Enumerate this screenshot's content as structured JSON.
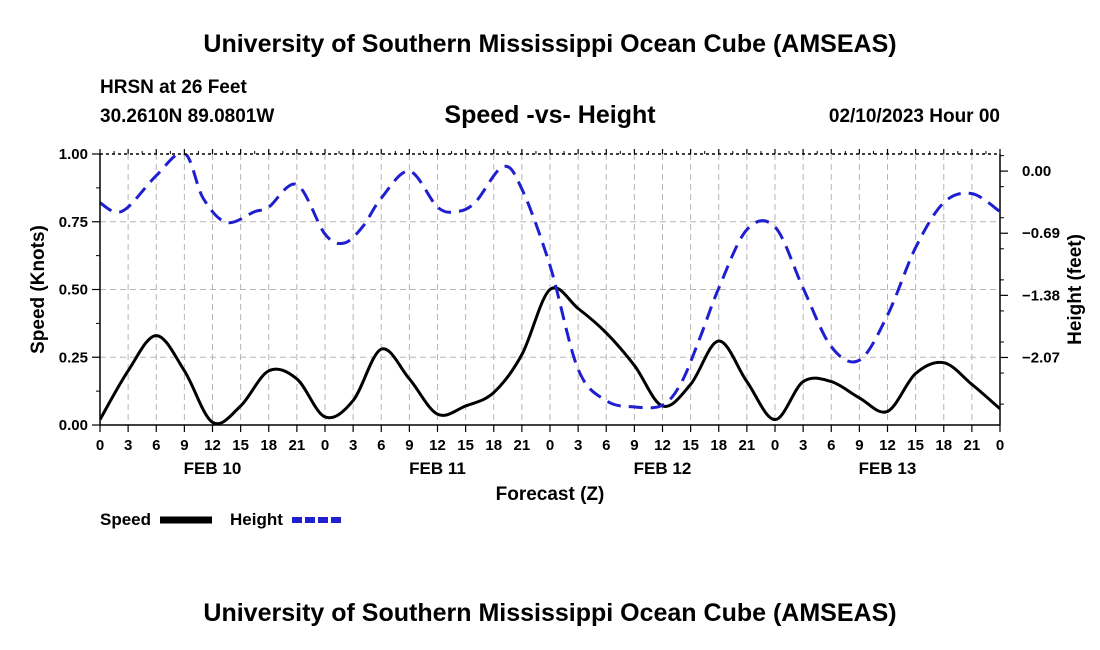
{
  "header": {
    "title": "University of Southern Mississippi Ocean Cube (AMSEAS)",
    "station": "HRSN at 26 Feet",
    "coords": "30.2610N  89.0801W",
    "chart_title": "Speed -vs- Height",
    "datetime": "02/10/2023 Hour 00"
  },
  "footer": {
    "title": "University of Southern Mississippi Ocean Cube (AMSEAS)"
  },
  "chart_data": {
    "type": "line",
    "title": "Speed -vs- Height",
    "xlabel": "Forecast (Z)",
    "ylabel": "Speed (Knots)",
    "y2label": "Height (feet)",
    "x_unit": "hours from 02/10/2023 00Z",
    "xlim": [
      0,
      96
    ],
    "ylim": [
      0,
      1
    ],
    "y2lim": [
      -2.82,
      0.19
    ],
    "y_ticks": [
      0,
      0.25,
      0.5,
      0.75,
      1
    ],
    "y_tick_labels": [
      "0.00",
      "0.25",
      "0.50",
      "0.75",
      "1.00"
    ],
    "y2_ticks": [
      0,
      -0.69,
      -1.38,
      -2.07
    ],
    "y2_tick_labels": [
      "0.00",
      "−0.69",
      "−1.38",
      "−2.07"
    ],
    "x_tick_labels": [
      "0",
      "3",
      "6",
      "9",
      "12",
      "15",
      "18",
      "21",
      "0",
      "3",
      "6",
      "9",
      "12",
      "15",
      "18",
      "21",
      "0",
      "3",
      "6",
      "9",
      "12",
      "15",
      "18",
      "21",
      "0",
      "3",
      "6",
      "9",
      "12",
      "15",
      "18",
      "21",
      "0"
    ],
    "day_labels": [
      {
        "hour": 12,
        "label": "FEB 10"
      },
      {
        "hour": 36,
        "label": "FEB 11"
      },
      {
        "hour": 60,
        "label": "FEB 12"
      },
      {
        "hour": 84,
        "label": "FEB 13"
      }
    ],
    "legend": [
      {
        "name": "Speed",
        "color": "#000000",
        "style": "solid"
      },
      {
        "name": "Height",
        "color": "#1f1fd0",
        "style": "dashed"
      }
    ],
    "series": [
      {
        "name": "Speed",
        "axis": "left",
        "color": "#000000",
        "x": [
          0,
          3,
          6,
          9,
          12,
          15,
          18,
          21,
          24,
          27,
          30,
          33,
          36,
          39,
          42,
          45,
          48,
          51,
          54,
          57,
          60,
          63,
          66,
          69,
          72,
          75,
          78,
          81,
          84,
          87,
          90,
          93,
          96
        ],
        "values": [
          0.02,
          0.2,
          0.33,
          0.2,
          0.01,
          0.07,
          0.2,
          0.17,
          0.03,
          0.09,
          0.28,
          0.17,
          0.04,
          0.07,
          0.12,
          0.26,
          0.5,
          0.43,
          0.34,
          0.22,
          0.07,
          0.15,
          0.31,
          0.16,
          0.02,
          0.16,
          0.16,
          0.1,
          0.05,
          0.19,
          0.23,
          0.15,
          0.06
        ]
      },
      {
        "name": "Height",
        "axis": "right",
        "color": "#1f1fd0",
        "x": [
          0,
          1.5,
          3,
          6,
          9,
          11,
          13.5,
          16.5,
          18,
          21,
          24,
          26,
          28,
          30,
          33,
          36,
          38,
          40,
          43,
          45,
          48,
          51,
          54,
          57,
          60,
          62,
          64,
          66,
          69,
          72,
          75,
          78,
          81,
          84,
          87,
          90,
          93,
          96
        ],
        "values": [
          -0.35,
          -0.45,
          -0.4,
          -0.05,
          0.2,
          -0.3,
          -0.57,
          -0.45,
          -0.4,
          -0.15,
          -0.7,
          -0.8,
          -0.62,
          -0.3,
          0.0,
          -0.4,
          -0.45,
          -0.35,
          0.05,
          -0.2,
          -1.05,
          -2.2,
          -2.55,
          -2.62,
          -2.6,
          -2.35,
          -1.85,
          -1.3,
          -0.65,
          -0.62,
          -1.3,
          -1.95,
          -2.1,
          -1.6,
          -0.85,
          -0.35,
          -0.25,
          -0.45
        ]
      }
    ]
  }
}
